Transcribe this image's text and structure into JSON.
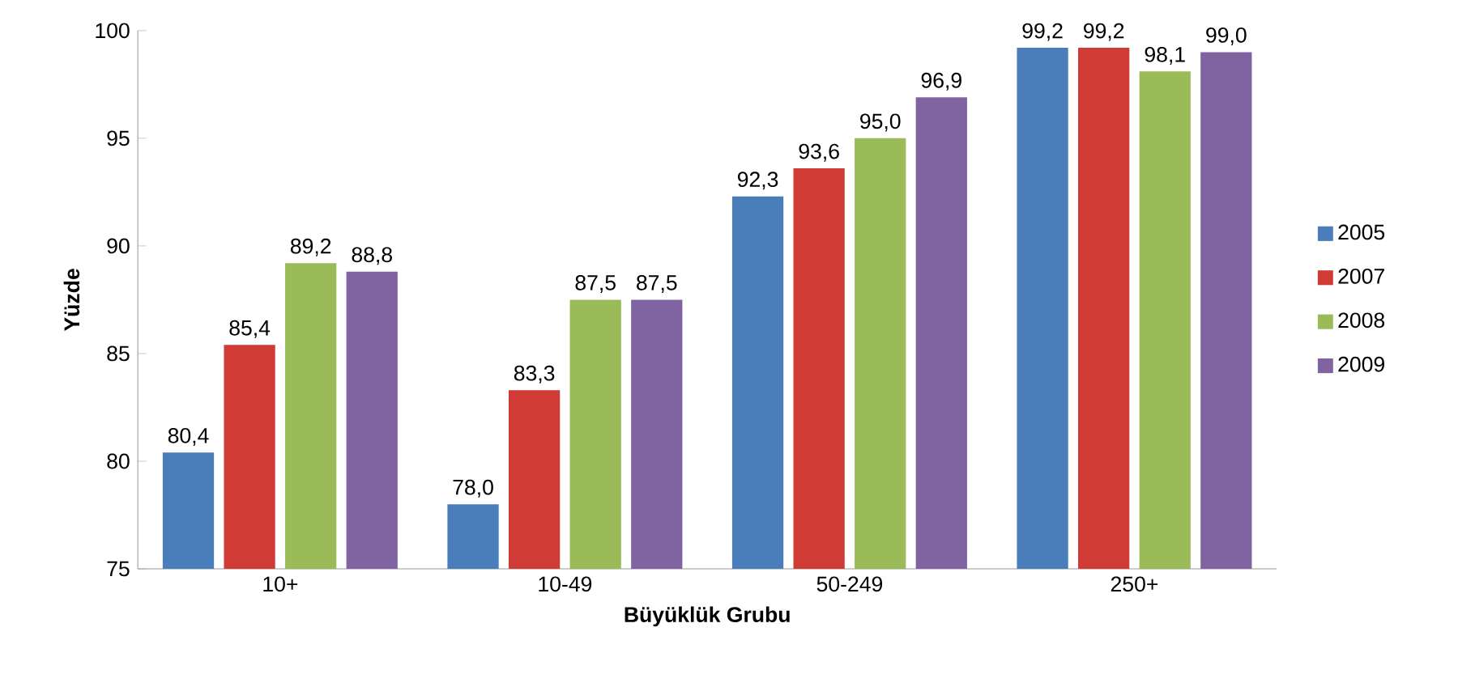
{
  "chart_data": {
    "type": "bar",
    "xlabel": "Büyüklük Grubu",
    "ylabel": "Yüzde",
    "categories": [
      "10+",
      "10-49",
      "50-249",
      "250+"
    ],
    "series": [
      {
        "name": "2005",
        "color": "#4a7ebb",
        "values": [
          80.4,
          78.0,
          92.3,
          99.2
        ],
        "value_labels": [
          "80,4",
          "78,0",
          "92,3",
          "99,2"
        ]
      },
      {
        "name": "2007",
        "color": "#d03b36",
        "values": [
          85.4,
          83.3,
          93.6,
          99.2
        ],
        "value_labels": [
          "85,4",
          "83,3",
          "93,6",
          "99,2"
        ]
      },
      {
        "name": "2008",
        "color": "#9bbb59",
        "values": [
          89.2,
          87.5,
          95.0,
          98.1
        ],
        "value_labels": [
          "89,2",
          "87,5",
          "95,0",
          "98,1"
        ]
      },
      {
        "name": "2009",
        "color": "#8064a2",
        "values": [
          88.8,
          87.5,
          96.9,
          99.0
        ],
        "value_labels": [
          "88,8",
          "87,5",
          "96,9",
          "99,0"
        ]
      }
    ],
    "ylim": [
      75,
      100
    ],
    "yticks": [
      75,
      80,
      85,
      90,
      95,
      100
    ],
    "grid": false,
    "legend": "right"
  }
}
